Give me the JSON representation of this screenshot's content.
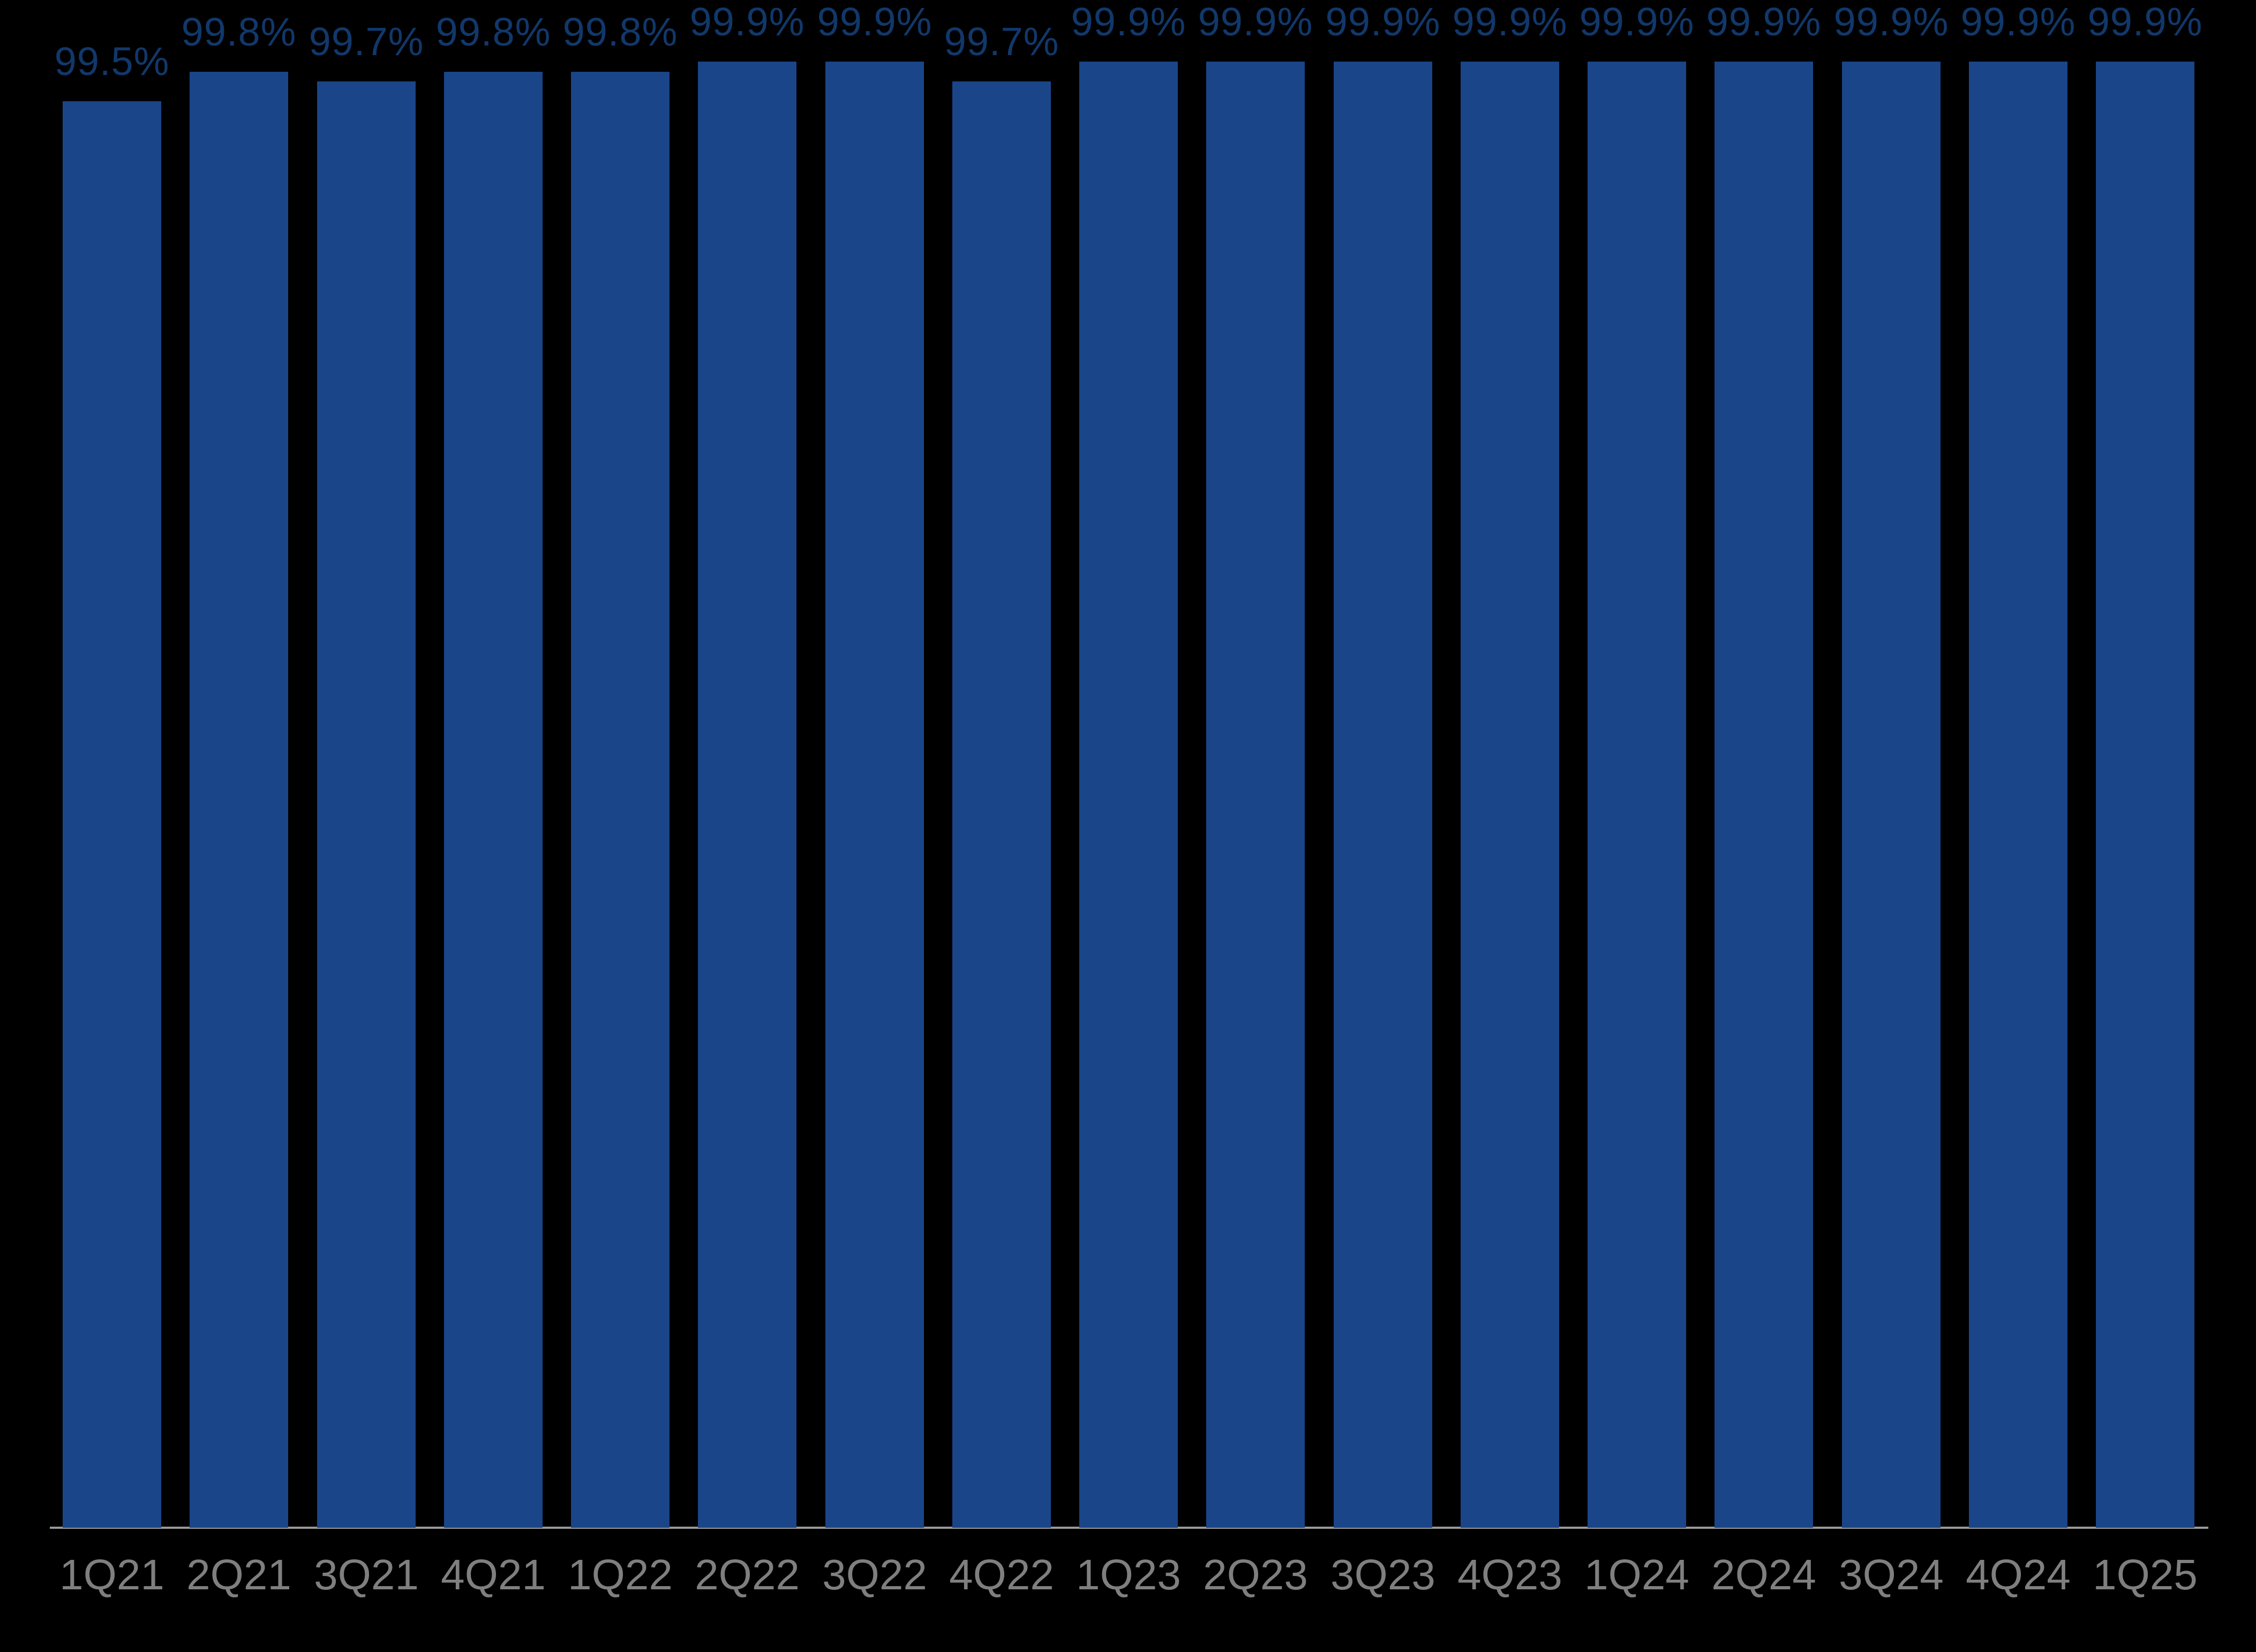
{
  "chart_data": {
    "type": "bar",
    "title": "",
    "xlabel": "",
    "ylabel": "",
    "categories": [
      "1Q21",
      "2Q21",
      "3Q21",
      "4Q21",
      "1Q22",
      "2Q22",
      "3Q22",
      "4Q22",
      "1Q23",
      "2Q23",
      "3Q23",
      "4Q23",
      "1Q24",
      "2Q24",
      "3Q24",
      "4Q24",
      "1Q25"
    ],
    "values": [
      99.5,
      99.8,
      99.7,
      99.8,
      99.8,
      99.9,
      99.9,
      99.7,
      99.9,
      99.9,
      99.9,
      99.9,
      99.9,
      99.9,
      99.9,
      99.9,
      99.9
    ],
    "data_labels": [
      "99.5%",
      "99.8%",
      "99.7%",
      "99.8%",
      "99.8%",
      "99.9%",
      "99.9%",
      "99.7%",
      "99.9%",
      "99.9%",
      "99.9%",
      "99.9%",
      "99.9%",
      "99.9%",
      "99.9%",
      "99.9%",
      "99.9%"
    ],
    "ylim": [
      85,
      100
    ],
    "grid": false,
    "legend": null,
    "colors": {
      "background": "#000000",
      "bar_fill": "#1A4589",
      "data_label": "#11386B",
      "axis_line": "#9A9A9A",
      "tick_label": "#7F7F7F"
    }
  }
}
